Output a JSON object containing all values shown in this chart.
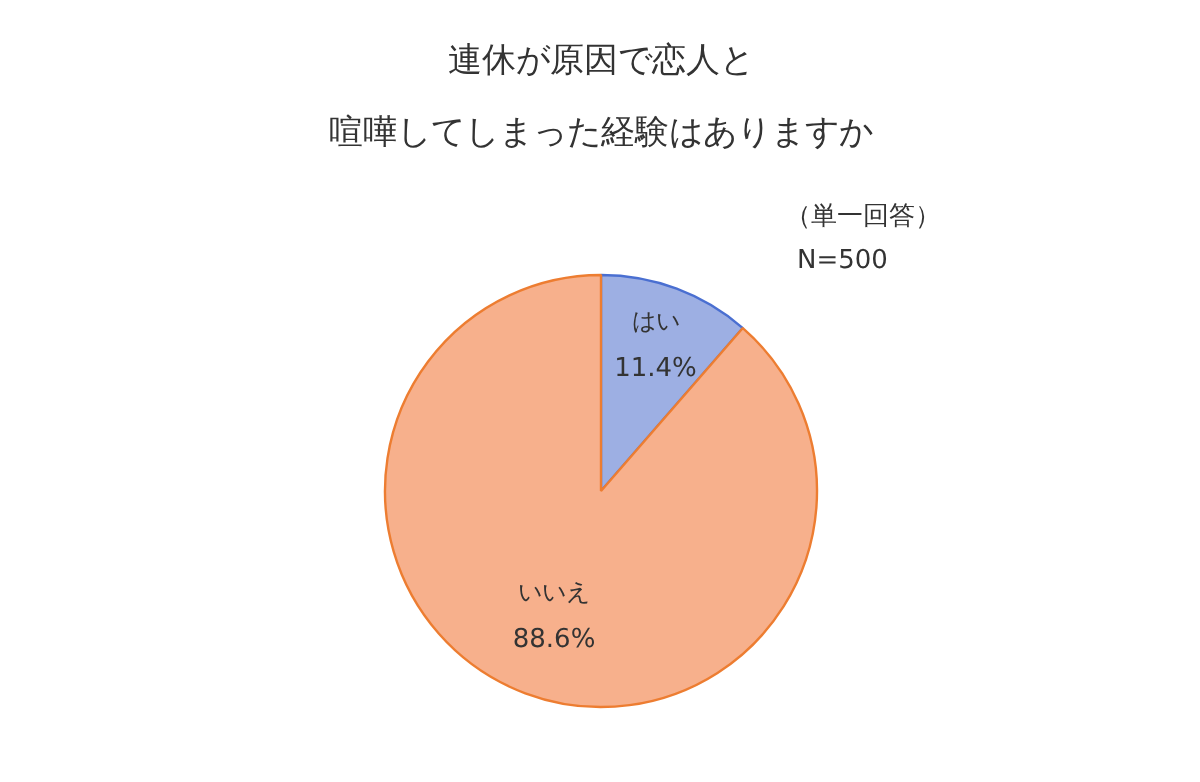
{
  "chart_data": {
    "type": "pie",
    "title": "連休が原因で恋人と",
    "subtitle": "喧嘩してしまった経験はありますか",
    "categories": [
      "はい",
      "いいえ"
    ],
    "values": [
      11.4,
      88.6
    ],
    "colors": [
      "#9dafe3",
      "#f7b08c"
    ],
    "value_labels": [
      "11.4%",
      "88.6%"
    ],
    "annotations": [
      "（単一回答）",
      "N=500"
    ]
  }
}
